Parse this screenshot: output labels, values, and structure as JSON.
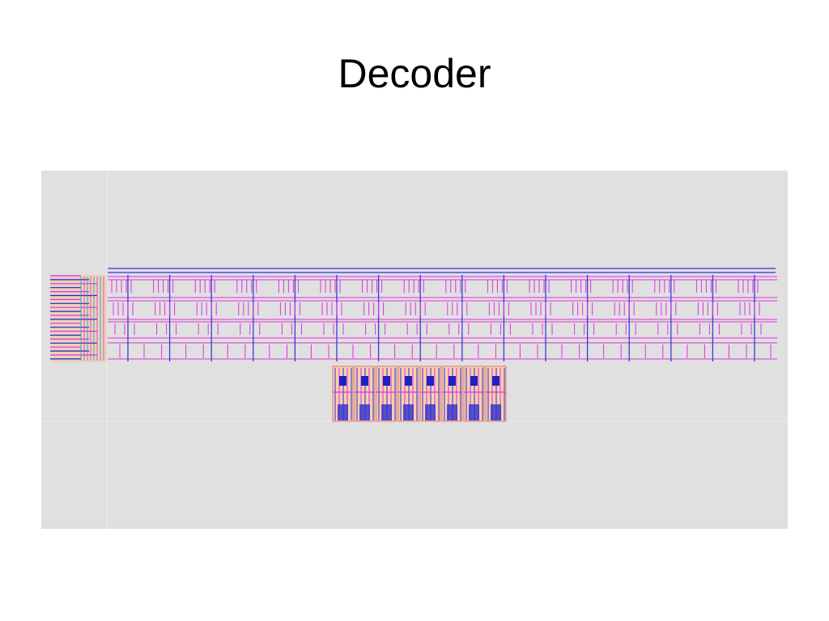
{
  "header": {
    "title": "Decoder"
  }
}
